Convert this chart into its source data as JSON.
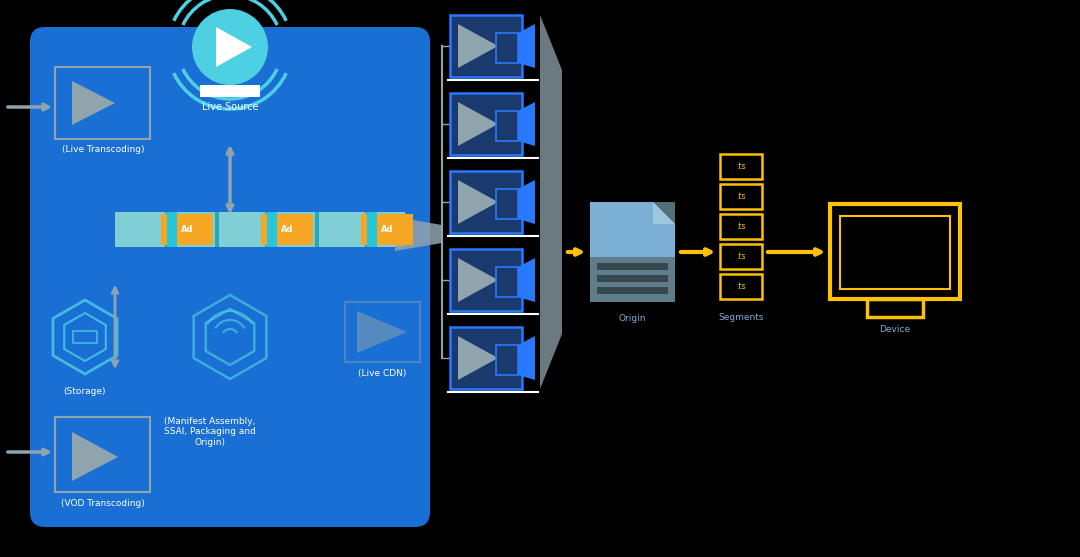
{
  "bg_color": "#000000",
  "main_box_color": "#1A6FD4",
  "blue_dark": "#1A237E",
  "blue_med": "#1E88E5",
  "cyan": "#4DD0E1",
  "gray": "#90A4AE",
  "gray_dark": "#607D8B",
  "yellow": "#FFC107",
  "light_blue": "#7BAFD4",
  "ad_orange": "#F5A623",
  "teal_seg": "#7ECFD6",
  "white": "#FFFFFF",
  "stream_box_bg": "#1A3A6E",
  "stream_box_edge": "#2979FF",
  "title": "Live Source",
  "label_live": "(Live Transcoding)",
  "label_storage": "(Storage)",
  "label_manifest": "(Manifest Assembly,\nSSAI, Packaging and\nOrigin)",
  "label_cdn": "(Live CDN)",
  "label_vod": "(VOD Transcoding)",
  "label_origin": "Origin",
  "label_segments": "Segments",
  "label_device": "Device"
}
